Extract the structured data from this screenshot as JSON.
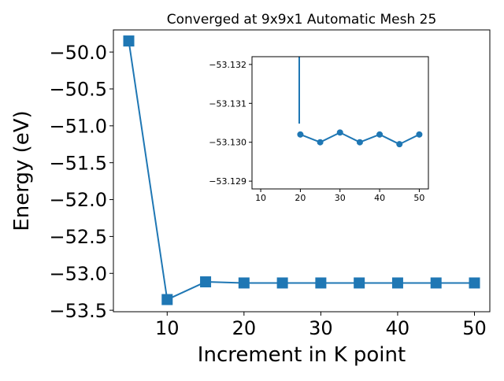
{
  "chart_data": [
    {
      "type": "line",
      "title": "Converged at 9x9x1 Automatic Mesh 25",
      "xlabel": "Increment in K point",
      "ylabel": "Energy (eV)",
      "x": [
        5,
        10,
        15,
        20,
        25,
        30,
        35,
        40,
        45,
        50
      ],
      "series": [
        {
          "values": [
            -49.85,
            -53.355,
            -53.115,
            -53.13,
            -53.13,
            -53.13,
            -53.13,
            -53.13,
            -53.13,
            -53.13
          ]
        }
      ],
      "xlim": [
        3,
        52
      ],
      "ylim": [
        -53.52,
        -49.7
      ],
      "xticks": [
        10,
        20,
        30,
        40,
        50
      ],
      "yticks": [
        -50.0,
        -50.5,
        -51.0,
        -51.5,
        -52.0,
        -52.5,
        -53.0,
        -53.5
      ],
      "ytick_labels": [
        "−50.0",
        "−50.5",
        "−51.0",
        "−51.5",
        "−52.0",
        "−52.5",
        "−53.0",
        "−53.5"
      ],
      "marker": "square",
      "color": "#1f77b4",
      "grid": false
    },
    {
      "type": "line",
      "x": [
        20,
        25,
        30,
        35,
        40,
        45,
        50
      ],
      "series": [
        {
          "values": [
            -53.1302,
            -53.13,
            -53.13025,
            -53.13,
            -53.1302,
            -53.12995,
            -53.1302
          ]
        }
      ],
      "xlim": [
        7.8,
        52.3
      ],
      "ylim": [
        -53.1288,
        -53.1322
      ],
      "y_inverted": true,
      "xticks": [
        10,
        20,
        30,
        40,
        50
      ],
      "yticks": [
        -53.132,
        -53.131,
        -53.13,
        -53.129
      ],
      "ytick_labels": [
        "−53.132",
        "−53.131",
        "−53.130",
        "−53.129"
      ],
      "marker": "circle",
      "color": "#1f77b4",
      "grid": false,
      "placement": "inset-top-right"
    }
  ]
}
